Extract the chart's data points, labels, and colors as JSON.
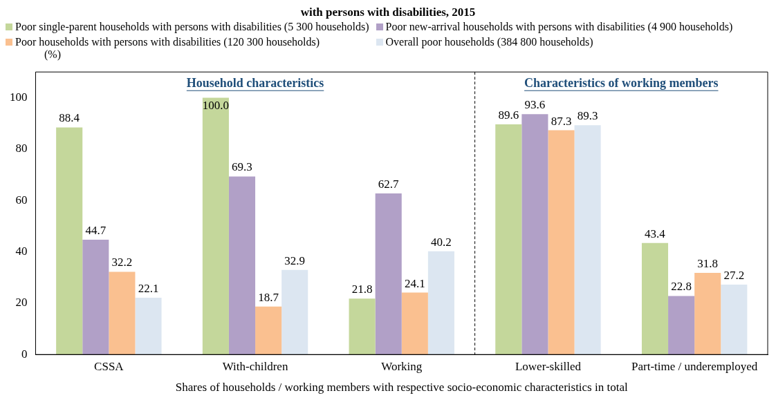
{
  "chart_data": {
    "type": "bar",
    "title": "with persons with disabilities, 2015",
    "categories": [
      "CSSA",
      "With-children",
      "Working",
      "Lower-skilled",
      "Part-time / underemployed"
    ],
    "series": [
      {
        "name": "Poor single-parent households with persons with disabilities (5 300 households)",
        "color": "#c4d79b",
        "values": [
          88.4,
          100.0,
          21.8,
          89.6,
          43.4
        ],
        "value_labels": [
          "88.4",
          "100.0",
          "21.8",
          "89.6",
          "43.4"
        ]
      },
      {
        "name": "Poor new-arrival households with persons with disabilities (4 900 households)",
        "color": "#b1a0c7",
        "values": [
          44.7,
          69.3,
          62.7,
          93.6,
          22.8
        ],
        "value_labels": [
          "44.7",
          "69.3",
          "62.7",
          "93.6",
          "22.8"
        ]
      },
      {
        "name": "Poor households with persons with disabilities (120 300 households)",
        "color": "#fac090",
        "values": [
          32.2,
          18.7,
          24.1,
          87.3,
          31.8
        ],
        "value_labels": [
          "32.2",
          "18.7",
          "24.1",
          "87.3",
          "31.8"
        ]
      },
      {
        "name": "Overall poor households (384 800 households)",
        "color": "#dce6f1",
        "values": [
          22.1,
          32.9,
          40.2,
          89.3,
          27.2
        ],
        "value_labels": [
          "22.1",
          "32.9",
          "40.2",
          "89.3",
          "27.2"
        ]
      }
    ],
    "ylabel": "(%)",
    "xlabel": "Shares of households / working members with respective socio-economic characteristics in total",
    "ylim": [
      0,
      110
    ],
    "yticks": [
      0,
      20,
      40,
      60,
      80,
      100
    ],
    "grid": false,
    "legend": "top",
    "annotations": [
      "Household characteristics",
      "Characteristics of working members"
    ]
  }
}
